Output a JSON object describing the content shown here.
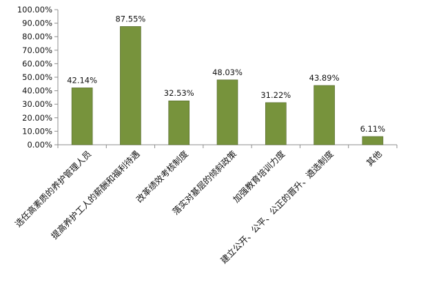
{
  "chart_data": {
    "type": "bar",
    "categories": [
      "选任高素质的养护管理人员",
      "提高养护工人的薪酬和福利待遇",
      "改革绩效考核制度",
      "落实对基层的倾斜政策",
      "加强教育培训力度",
      "建立公开、公平、公正的晋升、遴选制度",
      "其他"
    ],
    "values": [
      42.14,
      87.55,
      32.53,
      48.03,
      31.22,
      43.89,
      6.11
    ],
    "value_labels": [
      "42.14%",
      "87.55%",
      "32.53%",
      "48.03%",
      "31.22%",
      "43.89%",
      "6.11%"
    ],
    "y_ticks": [
      "0.00%",
      "10.00%",
      "20.00%",
      "30.00%",
      "40.00%",
      "50.00%",
      "60.00%",
      "70.00%",
      "80.00%",
      "90.00%",
      "100.00%"
    ],
    "ylim": [
      0,
      100
    ],
    "y_unit": "%",
    "grid": false,
    "legend": "none",
    "colors": {
      "bar_fill": "#77933c",
      "bar_stroke": "#4f6228",
      "axis": "#8c8c8c"
    }
  }
}
